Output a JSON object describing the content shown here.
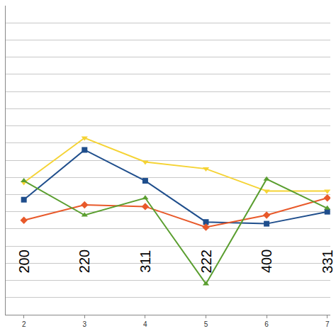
{
  "chart_data": {
    "type": "line",
    "x": [
      2,
      3,
      4,
      5,
      6,
      7
    ],
    "series": [
      {
        "color": "#1f4e8c",
        "marker": "square",
        "values": [
          6.7,
          9.6,
          7.8,
          5.4,
          5.3,
          6.0
        ]
      },
      {
        "color": "#e8592a",
        "marker": "diamond",
        "values": [
          5.5,
          6.4,
          6.3,
          5.1,
          5.8,
          6.8
        ]
      },
      {
        "color": "#f5d334",
        "marker": "triangle-down",
        "values": [
          7.7,
          10.3,
          8.9,
          8.5,
          7.2,
          7.2
        ]
      },
      {
        "color": "#5a9e2f",
        "marker": "triangle-up",
        "values": [
          7.8,
          5.8,
          6.8,
          1.8,
          7.9,
          6.2
        ]
      }
    ],
    "xlim": [
      1.7,
      7.05
    ],
    "xticks": [
      2,
      3,
      4,
      5,
      6,
      7
    ],
    "ylim": [
      0,
      18
    ],
    "yticks": [
      0,
      1,
      2,
      3,
      4,
      5,
      6,
      7,
      8,
      9,
      10,
      11,
      12,
      13,
      14,
      15,
      16,
      17,
      18
    ],
    "grid": true,
    "tick_labels": "x",
    "annotations": [
      {
        "x": 2,
        "y": 3.1,
        "text": "200"
      },
      {
        "x": 3,
        "y": 3.1,
        "text": "220"
      },
      {
        "x": 4,
        "y": 3.1,
        "text": "311"
      },
      {
        "x": 5,
        "y": 3.1,
        "text": "222"
      },
      {
        "x": 6,
        "y": 3.1,
        "text": "400"
      },
      {
        "x": 7,
        "y": 3.1,
        "text": "331"
      }
    ]
  }
}
